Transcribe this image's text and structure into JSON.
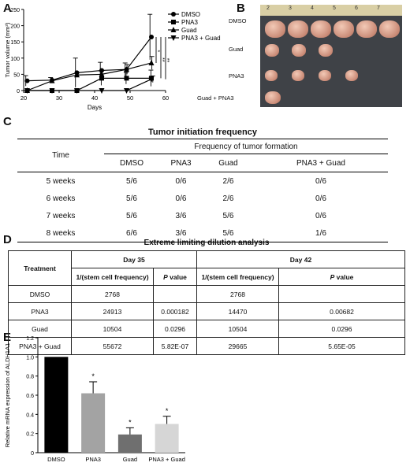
{
  "panels": {
    "a": "A",
    "b": "B",
    "c": "C",
    "d": "D",
    "e": "E"
  },
  "chart_a": {
    "type": "line",
    "xlabel": "Days",
    "ylabel": "Tumor volume (mm³)",
    "xlim": [
      20,
      60
    ],
    "ylim": [
      0,
      250
    ],
    "x_ticks": [
      20,
      30,
      40,
      50,
      60
    ],
    "y_ticks": [
      0,
      50,
      100,
      150,
      200,
      250
    ],
    "x": [
      21,
      28,
      35,
      42,
      49,
      56
    ],
    "series": [
      {
        "name": "DMSO",
        "marker": "circle",
        "values": [
          30,
          32,
          55,
          62,
          65,
          165
        ],
        "err": [
          16,
          8,
          45,
          25,
          20,
          70
        ]
      },
      {
        "name": "PNA3",
        "marker": "square",
        "values": [
          0,
          0,
          0,
          38,
          38,
          38
        ],
        "err": [
          0,
          0,
          0,
          22,
          18,
          25
        ]
      },
      {
        "name": "Guad",
        "marker": "triangle",
        "values": [
          0,
          30,
          48,
          50,
          65,
          85
        ],
        "err": [
          0,
          0,
          0,
          12,
          15,
          20
        ]
      },
      {
        "name": "PNA3 + Guad",
        "marker": "triangle-down",
        "values": [
          0,
          0,
          0,
          0,
          0,
          35
        ],
        "err": [
          0,
          0,
          0,
          0,
          0,
          10
        ]
      }
    ],
    "significance": [
      "*",
      "**",
      "**"
    ]
  },
  "photo_b": {
    "ruler": [
      "2",
      "3",
      "4",
      "5",
      "6",
      "7"
    ],
    "rows": [
      "DMSO",
      "Guad",
      "PNA3",
      "Guad + PNA3"
    ]
  },
  "table_c": {
    "title": "Tumor initiation frequency",
    "col_time": "Time",
    "group_header": "Frequency of tumor formation",
    "groups": [
      "DMSO",
      "PNA3",
      "Guad",
      "PNA3 + Guad"
    ],
    "rows": [
      {
        "time": "5 weeks",
        "vals": [
          "5/6",
          "0/6",
          "2/6",
          "0/6"
        ]
      },
      {
        "time": "6 weeks",
        "vals": [
          "5/6",
          "0/6",
          "2/6",
          "0/6"
        ]
      },
      {
        "time": "7 weeks",
        "vals": [
          "5/6",
          "3/6",
          "5/6",
          "0/6"
        ]
      },
      {
        "time": "8 weeks",
        "vals": [
          "6/6",
          "3/6",
          "5/6",
          "1/6"
        ]
      }
    ]
  },
  "table_d": {
    "title": "Extreme limiting dilution analysis",
    "treatment": "Treatment",
    "day35": "Day 35",
    "day42": "Day 42",
    "freq": "1/(stem cell frequency)",
    "p": "P",
    "pval": " value",
    "rows": [
      {
        "t": "DMSO",
        "f35": "2768",
        "p35": "",
        "f42": "2768",
        "p42": ""
      },
      {
        "t": "PNA3",
        "f35": "24913",
        "p35": "0.000182",
        "f42": "14470",
        "p42": "0.00682"
      },
      {
        "t": "Guad",
        "f35": "10504",
        "p35": "0.0296",
        "f42": "10504",
        "p42": "0.0296"
      },
      {
        "t": "PNA3 + Guad",
        "f35": "55672",
        "p35": "5.82E-07",
        "f42": "29665",
        "p42": "5.65E-05"
      }
    ]
  },
  "chart_e": {
    "type": "bar",
    "ylabel": "Relative mRNA expression of ALDH1A1",
    "ylim": [
      0,
      1.2
    ],
    "y_ticks": [
      0,
      0.2,
      0.4,
      0.6,
      0.8,
      1.0,
      1.2
    ],
    "y_tick_labels": [
      "0",
      "0.2",
      "0.4",
      "0.6",
      "0.8",
      "1.0",
      "1.2"
    ],
    "categories": [
      "DMSO",
      "PNA3",
      "Guad",
      "PNA3 + Guad"
    ],
    "values": [
      1.0,
      0.62,
      0.19,
      0.3
    ],
    "err": [
      0,
      0.12,
      0.07,
      0.08
    ],
    "colors": [
      "#000000",
      "#a3a3a3",
      "#6f6f6f",
      "#d6d6d6"
    ],
    "significance": [
      "",
      "*",
      "*",
      "*"
    ]
  }
}
